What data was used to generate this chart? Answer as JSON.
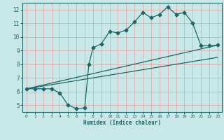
{
  "xlabel": "Humidex (Indice chaleur)",
  "bg_color": "#c8e8e8",
  "grid_color": "#e8a8a8",
  "line_color": "#1a6868",
  "xlim": [
    -0.5,
    23.5
  ],
  "ylim": [
    4.5,
    12.5
  ],
  "xticks": [
    0,
    1,
    2,
    3,
    4,
    5,
    6,
    7,
    8,
    9,
    10,
    11,
    12,
    13,
    14,
    15,
    16,
    17,
    18,
    19,
    20,
    21,
    22,
    23
  ],
  "yticks": [
    5,
    6,
    7,
    8,
    9,
    10,
    11,
    12
  ],
  "series1_x": [
    0,
    1,
    2,
    3,
    4,
    5,
    6,
    7,
    7.5,
    8,
    9,
    10,
    11,
    12,
    13,
    14,
    15,
    16,
    17,
    18,
    19,
    20,
    21,
    22,
    23
  ],
  "series1_y": [
    6.2,
    6.2,
    6.2,
    6.2,
    5.9,
    5.0,
    4.75,
    4.8,
    8.0,
    9.2,
    9.5,
    10.4,
    10.3,
    10.5,
    11.1,
    11.8,
    11.4,
    11.65,
    12.2,
    11.65,
    11.8,
    11.0,
    9.35,
    9.35,
    9.4
  ],
  "series2_x": [
    0,
    23
  ],
  "series2_y": [
    6.2,
    9.4
  ],
  "series3_x": [
    0,
    23
  ],
  "series3_y": [
    6.2,
    8.5
  ]
}
